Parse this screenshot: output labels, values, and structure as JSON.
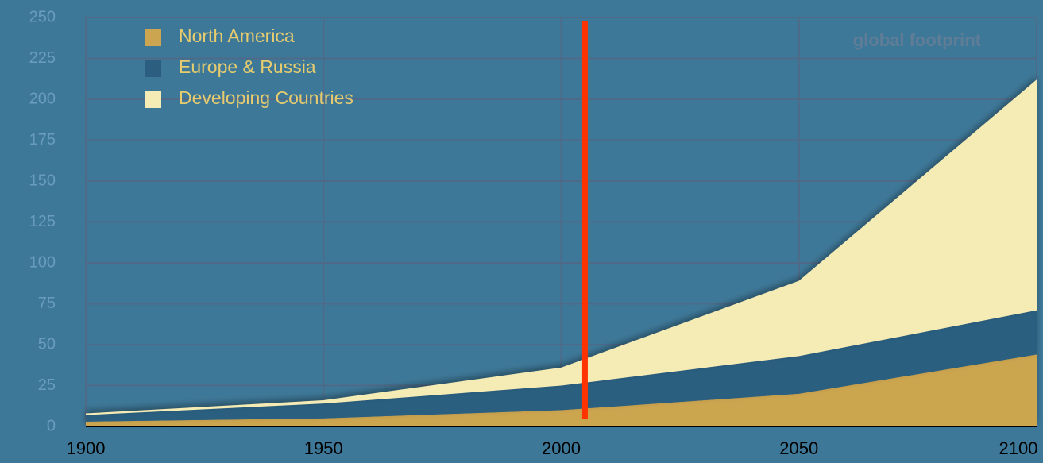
{
  "chart_data": {
    "type": "stacked_area",
    "title": "global footprint",
    "x": [
      1900,
      1950,
      2000,
      2050,
      2100
    ],
    "series": [
      {
        "name": "North America",
        "color": "#cca550",
        "values": [
          3,
          5,
          10,
          20,
          44
        ]
      },
      {
        "name": "Europe & Russia",
        "color": "#2c5e80",
        "values": [
          4,
          9,
          15,
          23,
          27
        ]
      },
      {
        "name": "Developing Countries",
        "color": "#f5ebb5",
        "values": [
          1,
          2,
          11,
          46,
          141
        ]
      }
    ],
    "xlim": [
      1900,
      2100
    ],
    "xticks": [
      1900,
      1950,
      2000,
      2050,
      2100
    ],
    "ylim": [
      0,
      250
    ],
    "yticks": [
      0,
      25,
      50,
      75,
      100,
      125,
      150,
      175,
      200,
      225,
      250
    ],
    "grid": true,
    "legend": "top-left",
    "vline": {
      "x": 2005,
      "color": "#ff3300"
    }
  }
}
